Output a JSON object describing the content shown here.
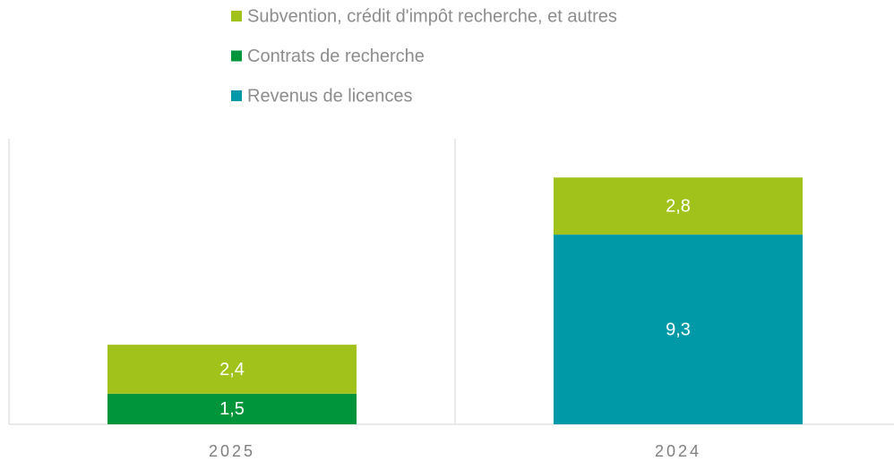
{
  "chart_data": {
    "type": "stacked_bar",
    "categories": [
      "2025",
      "2024"
    ],
    "series": [
      {
        "name": "Revenus de licences",
        "color": "#0099a8",
        "values": [
          null,
          9.3
        ],
        "value_labels": [
          null,
          "9,3"
        ]
      },
      {
        "name": "Contrats de recherche",
        "color": "#00953a",
        "values": [
          1.5,
          null
        ],
        "value_labels": [
          "1,5",
          null
        ]
      },
      {
        "name": "Subvention, crédit d'impôt recherche, et autres",
        "color": "#a0c21b",
        "values": [
          2.4,
          2.8
        ],
        "value_labels": [
          "2,4",
          "2,8"
        ]
      }
    ],
    "ylim": [
      0,
      14
    ]
  }
}
